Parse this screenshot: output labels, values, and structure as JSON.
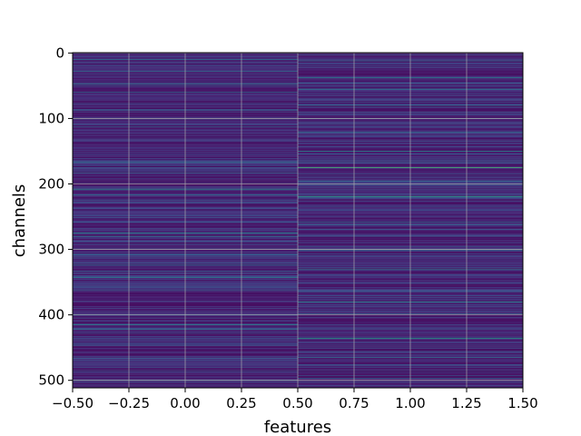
{
  "chart_data": {
    "type": "heatmap",
    "title": "",
    "xlabel": "features",
    "ylabel": "channels",
    "xlim": [
      -0.5,
      1.5
    ],
    "ylim": [
      511.5,
      -0.5
    ],
    "columns": [
      0,
      1
    ],
    "rows": 512,
    "colormap": "viridis",
    "grid": true,
    "xticks": [
      -0.5,
      -0.25,
      0.0,
      0.25,
      0.5,
      0.75,
      1.0,
      1.25,
      1.5
    ],
    "xtick_labels": [
      "−0.50",
      "−0.25",
      "0.00",
      "0.25",
      "0.50",
      "0.75",
      "1.00",
      "1.25",
      "1.50"
    ],
    "yticks": [
      0,
      100,
      200,
      300,
      400,
      500
    ],
    "ytick_labels": [
      "0",
      "100",
      "200",
      "300",
      "400",
      "500"
    ],
    "highlight_rows": {
      "column_0": [
        {
          "row": 10,
          "value": 0.45
        },
        {
          "row": 28,
          "value": 0.45
        },
        {
          "row": 47,
          "value": 0.5
        },
        {
          "row": 60,
          "value": 0.42
        },
        {
          "row": 87,
          "value": 0.45
        },
        {
          "row": 167,
          "value": 0.45
        },
        {
          "row": 183,
          "value": 0.42
        },
        {
          "row": 208,
          "value": 0.6
        },
        {
          "row": 217,
          "value": 0.5
        },
        {
          "row": 275,
          "value": 0.6
        },
        {
          "row": 280,
          "value": 0.5
        },
        {
          "row": 323,
          "value": 0.45
        },
        {
          "row": 343,
          "value": 0.55
        },
        {
          "row": 400,
          "value": 0.42
        },
        {
          "row": 415,
          "value": 0.55
        },
        {
          "row": 422,
          "value": 0.45
        },
        {
          "row": 445,
          "value": 0.4
        },
        {
          "row": 500,
          "value": 0.5
        }
      ],
      "column_1": [
        {
          "row": 12,
          "value": 0.45
        },
        {
          "row": 38,
          "value": 0.6
        },
        {
          "row": 55,
          "value": 0.45
        },
        {
          "row": 80,
          "value": 0.5
        },
        {
          "row": 100,
          "value": 0.4
        },
        {
          "row": 121,
          "value": 0.45
        },
        {
          "row": 150,
          "value": 0.6
        },
        {
          "row": 175,
          "value": 0.8
        },
        {
          "row": 196,
          "value": 0.4
        },
        {
          "row": 219,
          "value": 0.75
        },
        {
          "row": 258,
          "value": 0.45
        },
        {
          "row": 301,
          "value": 0.45
        },
        {
          "row": 330,
          "value": 0.5
        },
        {
          "row": 380,
          "value": 0.6
        },
        {
          "row": 398,
          "value": 0.45
        },
        {
          "row": 436,
          "value": 0.7
        },
        {
          "row": 465,
          "value": 0.45
        },
        {
          "row": 497,
          "value": 0.4
        }
      ]
    },
    "background_range": [
      0.05,
      0.32
    ]
  }
}
